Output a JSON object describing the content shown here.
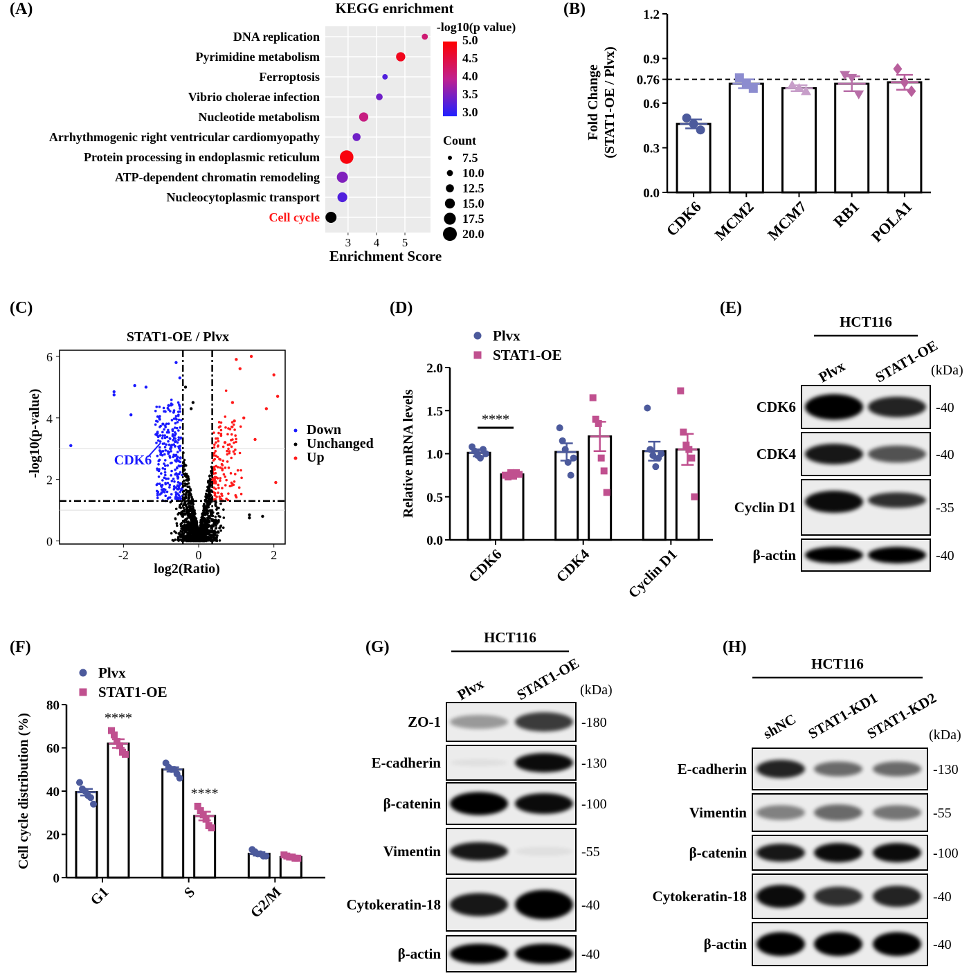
{
  "panels": {
    "A": {
      "label": "(A)"
    },
    "B": {
      "label": "(B)"
    },
    "C": {
      "label": "(C)"
    },
    "D": {
      "label": "(D)"
    },
    "E": {
      "label": "(E)"
    },
    "F": {
      "label": "(F)"
    },
    "G": {
      "label": "(G)"
    },
    "H": {
      "label": "(H)"
    }
  },
  "chart_data": [
    {
      "panel": "A",
      "type": "scatter",
      "title": "KEGG enrichment",
      "xlabel": "Enrichment Score",
      "ylabel": "",
      "x_ticks": [
        "3",
        "4",
        "5"
      ],
      "xlim": [
        2.2,
        5.9
      ],
      "categories": [
        "DNA replication",
        "Pyrimidine metabolism",
        "Ferroptosis",
        "Vibrio cholerae infection",
        "Nucleotide metabolism",
        "Arrhythmogenic right ventricular cardiomyopathy",
        "Protein processing in endoplasmic reticulum",
        "ATP-dependent chromatin remodeling",
        "Nucleocytoplasmic transport",
        "Cell cycle"
      ],
      "highlight_category": "Cell cycle",
      "highlight_color": "#ff1a1a",
      "points": [
        {
          "x": 5.7,
          "neglog10p": 4.2,
          "count": 7
        },
        {
          "x": 4.85,
          "neglog10p": 4.8,
          "count": 12
        },
        {
          "x": 4.3,
          "neglog10p": 3.3,
          "count": 6
        },
        {
          "x": 4.1,
          "neglog10p": 3.5,
          "count": 8
        },
        {
          "x": 3.55,
          "neglog10p": 4.1,
          "count": 12
        },
        {
          "x": 3.3,
          "neglog10p": 3.5,
          "count": 10
        },
        {
          "x": 2.95,
          "neglog10p": 4.9,
          "count": 19
        },
        {
          "x": 2.8,
          "neglog10p": 3.6,
          "count": 15
        },
        {
          "x": 2.8,
          "neglog10p": 3.3,
          "count": 13
        },
        {
          "x": 2.4,
          "neglog10p": 2.8,
          "count": 15
        }
      ],
      "color_legend_title": "-log10(p value)",
      "color_legend_ticks": [
        "5.0",
        "4.5",
        "4.0",
        "3.5",
        "3.0"
      ],
      "color_range": [
        3.0,
        5.0
      ],
      "color_low": "#2020ff",
      "color_high": "#ff0000",
      "size_legend_title": "Count",
      "size_legend_values": [
        "7.5",
        "10.0",
        "12.5",
        "15.0",
        "17.5",
        "20.0"
      ]
    },
    {
      "panel": "B",
      "type": "bar",
      "ylabel": "Fold Change",
      "ylabel2": "(STAT1-OE / Plvx)",
      "categories": [
        "CDK6",
        "MCM2",
        "MCM7",
        "RB1",
        "POLA1"
      ],
      "values": [
        0.46,
        0.73,
        0.7,
        0.73,
        0.74
      ],
      "errors": [
        0.03,
        0.03,
        0.02,
        0.05,
        0.05
      ],
      "points": [
        [
          0.5,
          0.46,
          0.42
        ],
        [
          0.77,
          0.73,
          0.7
        ],
        [
          0.72,
          0.7,
          0.68
        ],
        [
          0.79,
          0.77,
          0.66
        ],
        [
          0.83,
          0.74,
          0.68
        ]
      ],
      "markers": [
        "circle",
        "square",
        "triangle-up",
        "triangle-down",
        "diamond"
      ],
      "colors": [
        "#4c5a9c",
        "#8c8ccf",
        "#c79ec9",
        "#b86fa8",
        "#b85f9c"
      ],
      "ylim": [
        0,
        1.2
      ],
      "y_ticks": [
        "0.0",
        "0.3",
        "0.6",
        "0.76",
        "0.9",
        "1.2"
      ],
      "reference_line": 0.76
    },
    {
      "panel": "C",
      "type": "scatter",
      "title": "STAT1-OE / Plvx",
      "xlabel": "log2(Ratio)",
      "ylabel": "-log10(p-value)",
      "x_ticks": [
        "-2",
        "0",
        "2"
      ],
      "y_ticks": [
        "0",
        "2",
        "4",
        "6"
      ],
      "xlim": [
        -3.7,
        2.3
      ],
      "ylim": [
        -0.1,
        6.2
      ],
      "series": [
        {
          "name": "Down",
          "color": "#1a1aff"
        },
        {
          "name": "Unchanged",
          "color": "#000000"
        },
        {
          "name": "Up",
          "color": "#ff1a1a"
        }
      ],
      "thresholds": {
        "log2_ratio": [
          -0.42,
          0.36
        ],
        "neglog10p": 1.3
      },
      "annotation": "CDK6",
      "highlight_points": {
        "Down": [
          [
            -3.4,
            3.1
          ],
          [
            -2.25,
            4.85
          ],
          [
            -2.25,
            4.75
          ],
          [
            -1.7,
            5.05
          ],
          [
            -1.4,
            5.0
          ],
          [
            -1.8,
            4.1
          ],
          [
            -0.6,
            5.8
          ],
          [
            -0.5,
            5.3
          ],
          [
            -0.8,
            4.4
          ],
          [
            -0.95,
            3.8
          ],
          [
            -1.1,
            3.5
          ],
          [
            -0.75,
            3.0
          ],
          [
            -1.0,
            2.9
          ]
        ],
        "Up": [
          [
            1.0,
            5.9
          ],
          [
            1.4,
            6.0
          ],
          [
            1.1,
            5.6
          ],
          [
            2.0,
            5.4
          ],
          [
            2.1,
            4.7
          ],
          [
            1.8,
            4.3
          ],
          [
            0.9,
            4.5
          ],
          [
            1.2,
            4.0
          ],
          [
            2.05,
            1.9
          ],
          [
            1.5,
            3.3
          ],
          [
            0.95,
            3.9
          ],
          [
            0.7,
            3.2
          ]
        ],
        "Unchanged": [
          [
            -0.15,
            4.5
          ],
          [
            1.35,
            0.85
          ],
          [
            1.35,
            0.75
          ],
          [
            1.7,
            0.8
          ],
          [
            -0.35,
            5.0
          ],
          [
            -0.2,
            4.3
          ]
        ]
      }
    },
    {
      "panel": "D",
      "type": "bar",
      "ylabel": "Relative mRNA levels",
      "categories": [
        "CDK6",
        "CDK4",
        "Cyclin D1"
      ],
      "series": [
        {
          "name": "Plvx",
          "color": "#4c5a9c",
          "values": [
            1.01,
            1.02,
            1.03
          ],
          "errors": [
            0.04,
            0.1,
            0.11
          ],
          "points": [
            [
              1.08,
              1.03,
              0.98,
              0.95,
              1.05,
              1.0
            ],
            [
              1.3,
              1.15,
              1.05,
              0.9,
              0.75,
              0.95
            ],
            [
              1.53,
              1.05,
              0.98,
              0.85,
              0.95,
              1.0
            ]
          ]
        },
        {
          "name": "STAT1-OE",
          "color": "#c0508f",
          "values": [
            0.76,
            1.2,
            1.05
          ],
          "errors": [
            0.02,
            0.17,
            0.18
          ],
          "points": [
            [
              0.75,
              0.73,
              0.78,
              0.74,
              0.78,
              0.76
            ],
            [
              1.65,
              1.4,
              1.35,
              0.95,
              0.8,
              0.55
            ],
            [
              1.73,
              1.25,
              1.1,
              1.05,
              0.95,
              0.5
            ]
          ]
        }
      ],
      "significance": [
        {
          "category": "CDK6",
          "label": "****"
        }
      ],
      "ylim": [
        0,
        2.0
      ],
      "y_ticks": [
        "0.0",
        "0.5",
        "1.0",
        "1.5",
        "2.0"
      ]
    },
    {
      "panel": "F",
      "type": "bar",
      "ylabel": "Cell cycle distribution (%)",
      "categories": [
        "G1",
        "S",
        "G2/M"
      ],
      "series": [
        {
          "name": "Plvx",
          "color": "#4c5a9c",
          "values": [
            39.5,
            50,
            11
          ],
          "errors": [
            1.5,
            1.0,
            0.8
          ],
          "points": [
            [
              44,
              41,
              40,
              38,
              37,
              34
            ],
            [
              53,
              51,
              50,
              50,
              48,
              46
            ],
            [
              13,
              12,
              11,
              11,
              10,
              10
            ]
          ]
        },
        {
          "name": "STAT1-OE",
          "color": "#c0508f",
          "values": [
            62,
            28.5,
            9.5
          ],
          "errors": [
            2.0,
            2.0,
            0.4
          ],
          "points": [
            [
              68,
              66,
              63,
              61,
              58,
              57
            ],
            [
              33,
              31,
              29,
              27,
              24,
              23
            ],
            [
              10.5,
              10,
              9.5,
              9.5,
              9,
              9
            ]
          ]
        }
      ],
      "significance": [
        {
          "category": "G1",
          "label": "****"
        },
        {
          "category": "S",
          "label": "****"
        }
      ],
      "ylim": [
        0,
        80
      ],
      "y_ticks": [
        "0",
        "20",
        "40",
        "60",
        "80"
      ]
    }
  ],
  "blots": {
    "E": {
      "cell_line": "HCT116",
      "kda_label": "(kDa)",
      "lanes": [
        "Plvx",
        "STAT1-OE"
      ],
      "rows": [
        {
          "label": "CDK6",
          "kda": "-40"
        },
        {
          "label": "CDK4",
          "kda": "-40"
        },
        {
          "label": "Cyclin D1",
          "kda": "-35"
        },
        {
          "label": "β-actin",
          "kda": "-40"
        }
      ]
    },
    "G": {
      "cell_line": "HCT116",
      "kda_label": "(kDa)",
      "lanes": [
        "Plvx",
        "STAT1-OE"
      ],
      "rows": [
        {
          "label": "ZO-1",
          "kda": "-180"
        },
        {
          "label": "E-cadherin",
          "kda": "-130"
        },
        {
          "label": "β-catenin",
          "kda": "-100"
        },
        {
          "label": "Vimentin",
          "kda": "-55"
        },
        {
          "label": "Cytokeratin-18",
          "kda": "-40"
        },
        {
          "label": "β-actin",
          "kda": "-40"
        }
      ]
    },
    "H": {
      "cell_line": "HCT116",
      "kda_label": "(kDa)",
      "lanes": [
        "shNC",
        "STAT1-KD1",
        "STAT1-KD2"
      ],
      "rows": [
        {
          "label": "E-cadherin",
          "kda": "-130"
        },
        {
          "label": "Vimentin",
          "kda": "-55"
        },
        {
          "label": "β-catenin",
          "kda": "-100"
        },
        {
          "label": "Cytokeratin-18",
          "kda": "-40"
        },
        {
          "label": "β-actin",
          "kda": "-40"
        }
      ]
    }
  }
}
